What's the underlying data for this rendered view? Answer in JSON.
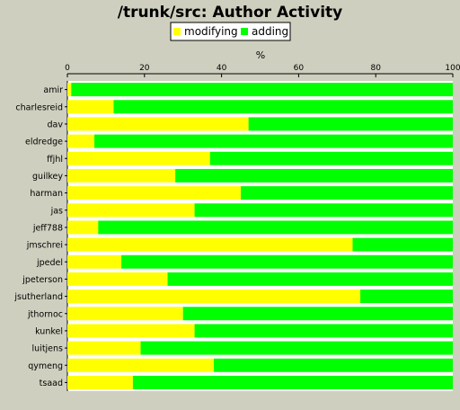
{
  "chart_data": {
    "type": "bar",
    "orientation": "horizontal",
    "stacked": true,
    "title": "/trunk/src: Author Activity",
    "axis_label": "%",
    "xlim": [
      0,
      100
    ],
    "x_ticks": [
      0,
      20,
      40,
      60,
      80,
      100
    ],
    "legend_position": "top",
    "grid": false,
    "categories": [
      "amir",
      "charlesreid",
      "dav",
      "eldredge",
      "ffjhl",
      "guilkey",
      "harman",
      "jas",
      "jeff788",
      "jmschrei",
      "jpedel",
      "jpeterson",
      "jsutherland",
      "jthornoc",
      "kunkel",
      "luitjens",
      "qymeng",
      "tsaad"
    ],
    "series": [
      {
        "name": "modifying",
        "color": "#ffff00",
        "values": [
          1,
          12,
          47,
          7,
          37,
          28,
          45,
          33,
          8,
          74,
          14,
          26,
          76,
          30,
          33,
          19,
          38,
          17
        ]
      },
      {
        "name": "adding",
        "color": "#00ff00",
        "values": [
          99,
          88,
          53,
          93,
          63,
          72,
          55,
          67,
          92,
          26,
          86,
          74,
          24,
          70,
          67,
          81,
          62,
          83
        ]
      }
    ]
  }
}
